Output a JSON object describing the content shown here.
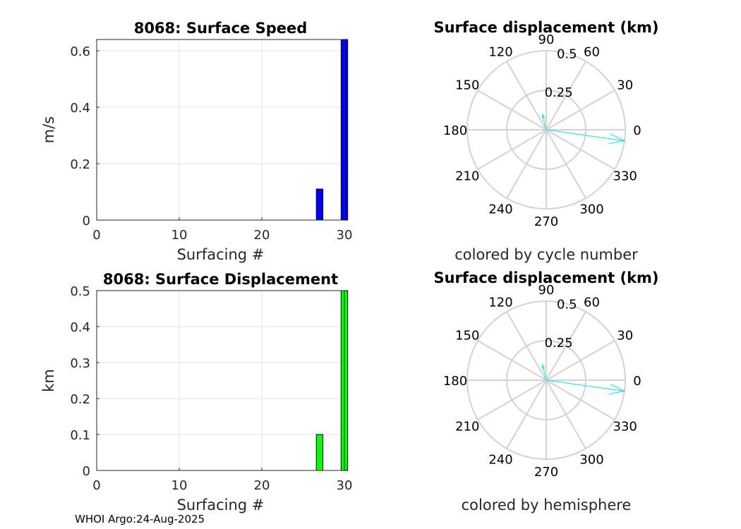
{
  "footer": "WHOI Argo:24-Aug-2025",
  "chart_data": [
    {
      "type": "bar",
      "title": "8068: Surface Speed",
      "xlabel": "Surfacing #",
      "ylabel": "m/s",
      "xlim": [
        0,
        30
      ],
      "ylim": [
        0,
        0.64
      ],
      "xticks": [
        "0",
        "10",
        "20",
        "30"
      ],
      "yticks": [
        "0",
        "0.2",
        "0.4",
        "0.6"
      ],
      "x": [
        27,
        30
      ],
      "values": [
        0.11,
        0.64
      ],
      "color": "#0000ff",
      "grid": true
    },
    {
      "type": "bar",
      "title": "8068: Surface Displacement",
      "xlabel": "Surfacing #",
      "ylabel": "km",
      "xlim": [
        0,
        30
      ],
      "ylim": [
        0,
        0.5
      ],
      "xticks": [
        "0",
        "10",
        "20",
        "30"
      ],
      "yticks": [
        "0",
        "0.1",
        "0.2",
        "0.3",
        "0.4",
        "0.5"
      ],
      "x": [
        27,
        30
      ],
      "values": [
        0.1,
        0.5
      ],
      "color": "#00ff00",
      "grid": true
    },
    {
      "type": "polar",
      "title": "Surface displacement (km)",
      "subtitle": "colored by cycle number",
      "rmax": 0.5,
      "radial_ticks": [
        "0.25",
        "0.5"
      ],
      "angle_ticks": [
        "0",
        "30",
        "60",
        "90",
        "120",
        "150",
        "180",
        "210",
        "240",
        "270",
        "300",
        "330"
      ],
      "vectors": [
        {
          "angle_deg": -8,
          "r": 0.5
        },
        {
          "angle_deg": 104,
          "r": 0.1
        }
      ],
      "color": "#00e5ee"
    },
    {
      "type": "polar",
      "title": "Surface displacement (km)",
      "subtitle": "colored by hemisphere",
      "rmax": 0.5,
      "radial_ticks": [
        "0.25",
        "0.5"
      ],
      "angle_ticks": [
        "0",
        "30",
        "60",
        "90",
        "120",
        "150",
        "180",
        "210",
        "240",
        "270",
        "300",
        "330"
      ],
      "vectors": [
        {
          "angle_deg": -8,
          "r": 0.5
        },
        {
          "angle_deg": 104,
          "r": 0.1
        }
      ],
      "color": "#00e5ee"
    }
  ]
}
